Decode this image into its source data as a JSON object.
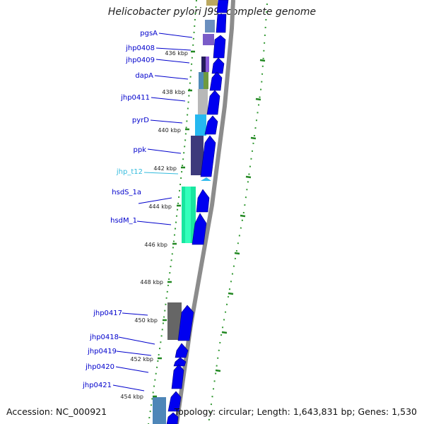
{
  "title": "Helicobacter pylori J99, complete genome",
  "accession": "Accession: NC_000921",
  "topology": "Topology: circular; Length: 1,643,831 bp; Genes: 1,530",
  "colors": {
    "gene_label": "#0000cc",
    "trna_label": "#33bbdd",
    "tick_mark": "#228822",
    "cds_arrow": "#0000ee",
    "backbone": "#888888"
  },
  "ticks": [
    "436 kbp",
    "438 kbp",
    "440 kbp",
    "442 kbp",
    "444 kbp",
    "446 kbp",
    "448 kbp",
    "450 kbp",
    "452 kbp",
    "454 kbp"
  ],
  "genes": [
    "pgsA",
    "jhp0408",
    "jhp0409",
    "dapA",
    "jhp0411",
    "pyrD",
    "ppk",
    "jhp_t12",
    "hsdS_1a",
    "hsdM_1",
    "jhp0417",
    "jhp0418",
    "jhp0419",
    "jhp0420",
    "jhp0421"
  ]
}
